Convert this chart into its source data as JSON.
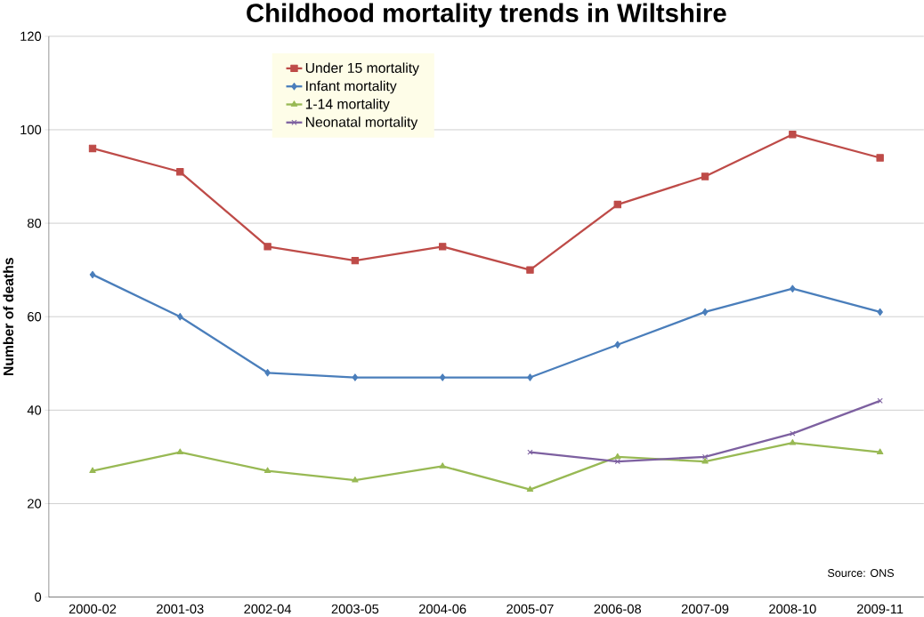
{
  "chart_data": {
    "type": "line",
    "title": "Childhood mortality trends in Wiltshire",
    "ylabel": "Number of deaths",
    "categories": [
      "2000-02",
      "2001-03",
      "2002-04",
      "2003-05",
      "2004-06",
      "2005-07",
      "2006-08",
      "2007-09",
      "2008-10",
      "2009-11"
    ],
    "series": [
      {
        "name": "Under 15 mortality",
        "color": "#be4b48",
        "marker": "square",
        "values": [
          96,
          91,
          75,
          72,
          75,
          70,
          84,
          90,
          99,
          94
        ]
      },
      {
        "name": "Infant mortality",
        "color": "#4a7ebb",
        "marker": "diamond",
        "values": [
          69,
          60,
          48,
          47,
          47,
          47,
          54,
          61,
          66,
          61
        ]
      },
      {
        "name": "1-14 mortality",
        "color": "#98b954",
        "marker": "triangle",
        "values": [
          27,
          31,
          27,
          25,
          28,
          23,
          30,
          29,
          33,
          31
        ]
      },
      {
        "name": "Neonatal mortality",
        "color": "#7d60a0",
        "marker": "cross",
        "values": [
          null,
          null,
          null,
          null,
          null,
          31,
          29,
          30,
          35,
          42
        ]
      }
    ],
    "ylim": [
      0,
      120
    ],
    "yticks": [
      0,
      20,
      40,
      60,
      80,
      100,
      120
    ],
    "grid": "y",
    "legend": "top",
    "annotations": [
      "Source: ONS"
    ]
  }
}
